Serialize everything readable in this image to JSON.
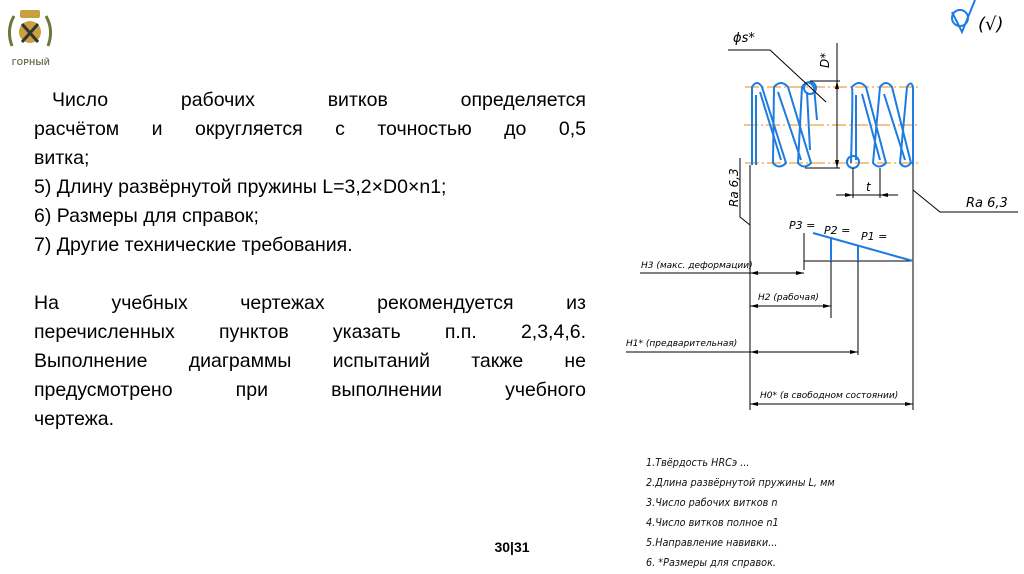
{
  "logo": {
    "text": "ГОРНЫЙ"
  },
  "body": {
    "lines": [
      "Число рабочих витков определяется",
      "расчётом и округляется с точностью до 0,5",
      "витка;",
      "5) Длину развёрнутой пружины L=3,2×D0×n1;",
      "6) Размеры для справок;",
      "7) Другие технические требования."
    ],
    "paragraph2": [
      "На учебных чертежах рекомендуется из",
      "перечисленных пунктов указать п.п. 2,3,4,6.",
      "Выполнение диаграммы испытаний также не",
      "предусмотрено при выполнении учебного",
      "чертежа."
    ]
  },
  "drawing": {
    "wire_diameter": "ϕs*",
    "diameter": "D*",
    "pitch": "t",
    "roughness_left": "Ra 6,3",
    "roughness_right": "Ra 6,3",
    "roughness_general": "(√)",
    "p3": "P3 =",
    "p2": "P2 =",
    "p1": "P1 =",
    "h3": "H3 (макс. деформации)",
    "h2": "H2 (рабочая)",
    "h1": "H1* (предварительная)",
    "h0": "H0* (в свободном состоянии)",
    "colors": {
      "spring": "#1e7be0",
      "centerline": "#f0a040"
    }
  },
  "notes": [
    "1.Твёрдость HRCэ ...",
    "2.Длина развёрнутой пружины L, мм",
    "3.Число рабочих витков n",
    "4.Число витков полное n1",
    "5.Направление навивки...",
    "6. *Размеры для справок."
  ],
  "page": {
    "number": "30|31"
  }
}
